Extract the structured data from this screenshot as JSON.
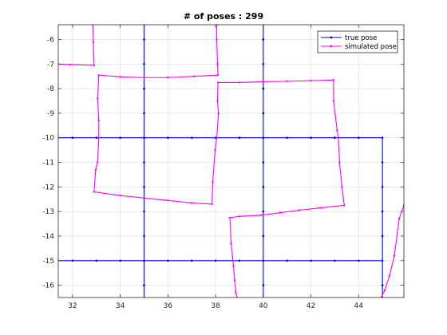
{
  "chart_data": {
    "type": "line",
    "title": "# of poses : 299",
    "xlabel": "",
    "ylabel": "",
    "xlim": [
      31.4,
      45.9
    ],
    "ylim": [
      -16.5,
      -5.4
    ],
    "xticks": [
      32,
      34,
      36,
      38,
      40,
      42,
      44
    ],
    "yticks": [
      -6,
      -7,
      -8,
      -9,
      -10,
      -11,
      -12,
      -13,
      -14,
      -15,
      -16
    ],
    "grid": true,
    "legend_position": "top-right",
    "series": [
      {
        "name": "true pose",
        "color": "#0000ff",
        "marker_color": "#00008b",
        "segments": [
          [
            [
              35,
              -5.4
            ],
            [
              35,
              -16.5
            ]
          ],
          [
            [
              40,
              -5.4
            ],
            [
              40,
              -16.5
            ]
          ],
          [
            [
              31.4,
              -10
            ],
            [
              45,
              -10
            ],
            [
              45,
              -16.5
            ]
          ],
          [
            [
              31.4,
              -15
            ],
            [
              45,
              -15
            ]
          ]
        ],
        "markers": [
          [
            35,
            -6
          ],
          [
            35,
            -7
          ],
          [
            35,
            -8
          ],
          [
            35,
            -9
          ],
          [
            35,
            -11
          ],
          [
            35,
            -12
          ],
          [
            35,
            -13
          ],
          [
            35,
            -14
          ],
          [
            35,
            -16
          ],
          [
            40,
            -6
          ],
          [
            40,
            -7
          ],
          [
            40,
            -8
          ],
          [
            40,
            -9
          ],
          [
            40,
            -11
          ],
          [
            40,
            -12
          ],
          [
            40,
            -13
          ],
          [
            40,
            -14
          ],
          [
            40,
            -16
          ],
          [
            32,
            -10
          ],
          [
            33,
            -10
          ],
          [
            34,
            -10
          ],
          [
            36,
            -10
          ],
          [
            37,
            -10
          ],
          [
            38,
            -10
          ],
          [
            39,
            -10
          ],
          [
            41,
            -10
          ],
          [
            42,
            -10
          ],
          [
            43,
            -10
          ],
          [
            44,
            -10
          ],
          [
            45,
            -10
          ],
          [
            45,
            -11
          ],
          [
            45,
            -12
          ],
          [
            45,
            -13
          ],
          [
            45,
            -14
          ],
          [
            45,
            -16
          ],
          [
            32,
            -15
          ],
          [
            33,
            -15
          ],
          [
            34,
            -15
          ],
          [
            36,
            -15
          ],
          [
            37,
            -15
          ],
          [
            38,
            -15
          ],
          [
            39,
            -15
          ],
          [
            41,
            -15
          ],
          [
            42,
            -15
          ],
          [
            43,
            -15
          ],
          [
            44,
            -15
          ],
          [
            45,
            -15
          ],
          [
            35,
            -10
          ],
          [
            40,
            -10
          ],
          [
            35,
            -15
          ],
          [
            40,
            -15
          ]
        ]
      },
      {
        "name": "simulated pose",
        "color": "#ff00ff",
        "segments": [
          [
            [
              31.4,
              -7.0
            ],
            [
              31.9,
              -7.02
            ],
            [
              32.9,
              -7.05
            ],
            [
              32.87,
              -6.1
            ],
            [
              32.85,
              -5.4
            ]
          ],
          [
            [
              38.05,
              -5.4
            ],
            [
              38.05,
              -6.0
            ],
            [
              38.08,
              -7.0
            ],
            [
              38.1,
              -7.45
            ],
            [
              37.1,
              -7.5
            ],
            [
              36.0,
              -7.55
            ],
            [
              35.0,
              -7.55
            ],
            [
              34.0,
              -7.52
            ],
            [
              33.1,
              -7.45
            ],
            [
              33.05,
              -8.4
            ],
            [
              33.1,
              -9.3
            ],
            [
              33.1,
              -10.0
            ],
            [
              33.05,
              -11.0
            ],
            [
              32.97,
              -11.3
            ],
            [
              32.9,
              -12.2
            ],
            [
              34.0,
              -12.35
            ],
            [
              35.0,
              -12.45
            ],
            [
              36.0,
              -12.55
            ],
            [
              37.0,
              -12.65
            ],
            [
              37.85,
              -12.7
            ],
            [
              37.88,
              -11.8
            ],
            [
              37.98,
              -10.5
            ],
            [
              38.05,
              -10.0
            ],
            [
              38.12,
              -9.0
            ],
            [
              38.08,
              -8.5
            ],
            [
              38.1,
              -7.75
            ],
            [
              39.0,
              -7.75
            ],
            [
              40.0,
              -7.72
            ],
            [
              41.0,
              -7.7
            ],
            [
              42.0,
              -7.68
            ],
            [
              42.95,
              -7.65
            ],
            [
              42.95,
              -8.5
            ],
            [
              43.1,
              -9.7
            ],
            [
              43.15,
              -10.0
            ],
            [
              43.2,
              -11.0
            ],
            [
              43.3,
              -12.0
            ],
            [
              43.4,
              -12.75
            ],
            [
              42.4,
              -12.85
            ],
            [
              41.5,
              -12.95
            ],
            [
              40.7,
              -13.05
            ],
            [
              39.9,
              -13.15
            ],
            [
              39.0,
              -13.2
            ],
            [
              38.6,
              -13.25
            ],
            [
              38.65,
              -14.3
            ],
            [
              38.75,
              -15.2
            ],
            [
              38.8,
              -15.8
            ],
            [
              38.85,
              -16.3
            ],
            [
              38.9,
              -16.5
            ]
          ],
          [
            [
              44.95,
              -16.5
            ],
            [
              45.1,
              -16.2
            ],
            [
              45.3,
              -15.6
            ],
            [
              45.5,
              -14.8
            ],
            [
              45.7,
              -13.3
            ],
            [
              45.9,
              -12.75
            ]
          ]
        ]
      }
    ]
  }
}
